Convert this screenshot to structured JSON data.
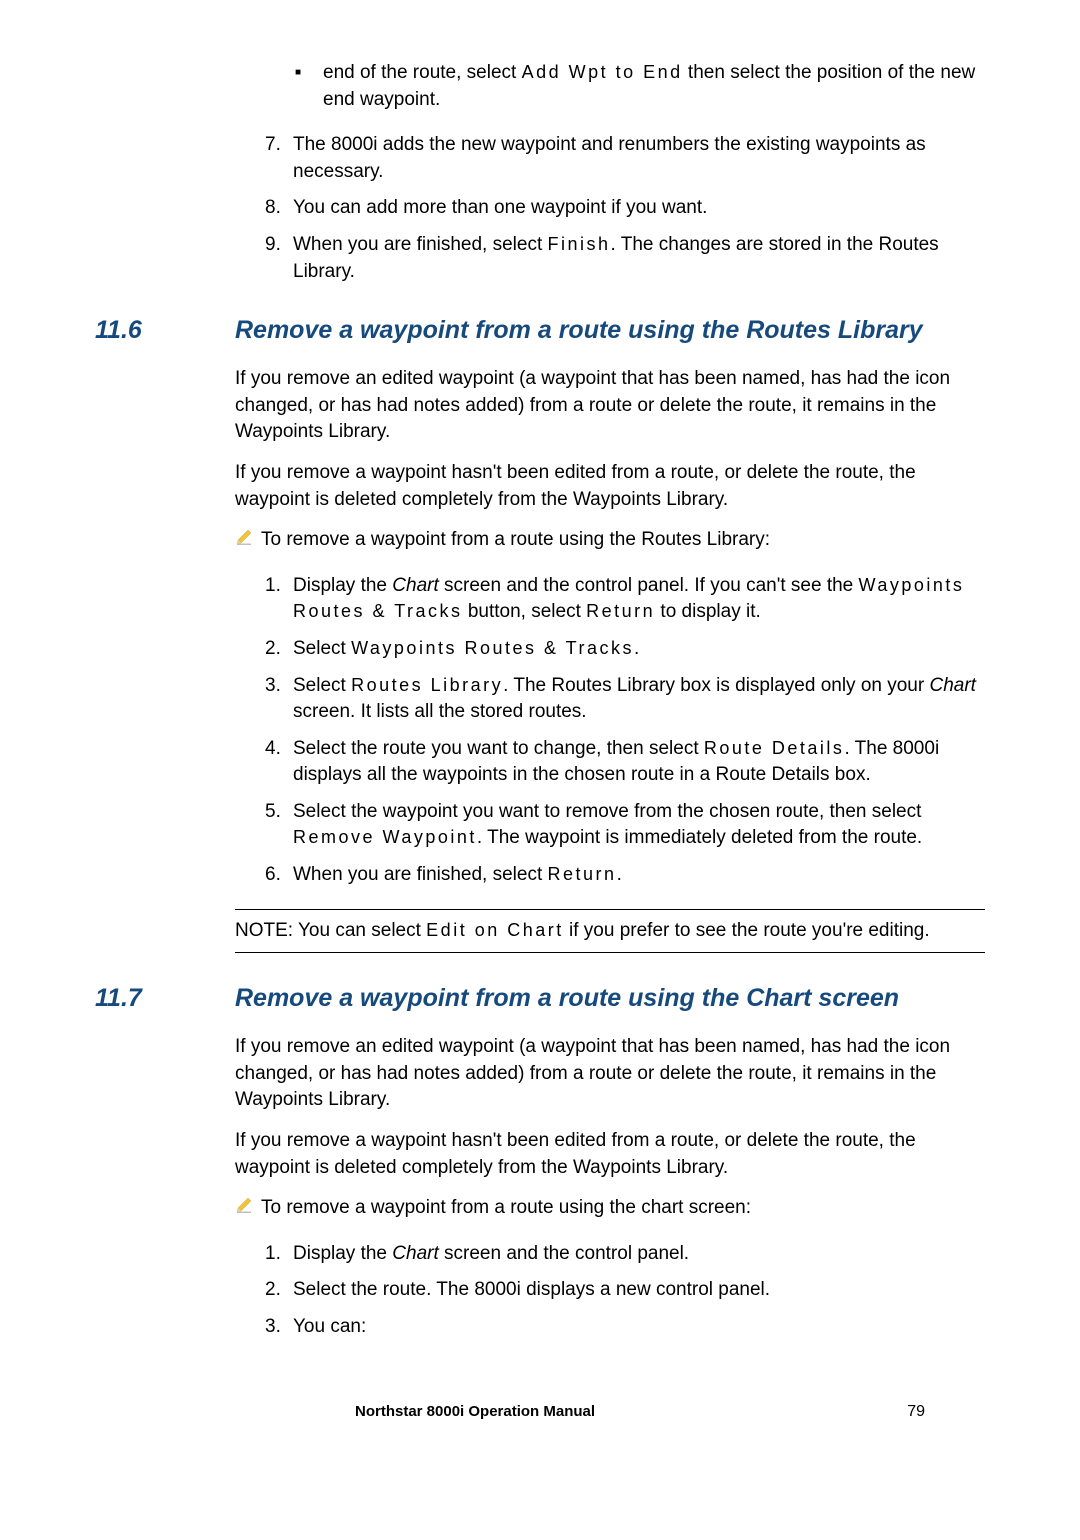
{
  "topBullet": {
    "pre": "end of the route, select ",
    "ui": "Add Wpt to End",
    "post": " then select the position of the new end waypoint."
  },
  "topList": [
    {
      "n": "7.",
      "text": "The 8000i adds the new waypoint and renumbers the existing waypoints as necessary."
    },
    {
      "n": "8.",
      "text": "You can add more than one waypoint if you want."
    },
    {
      "n": "9.",
      "pre": "When you are finished, select ",
      "ui": "Finish",
      "post": ". The changes are  stored in the Routes Library."
    }
  ],
  "sec116": {
    "num": "11.6",
    "title": "Remove a waypoint from a route using the Routes Library",
    "p1": "If you remove an edited waypoint (a waypoint that has been named, has had the icon changed, or has had notes added) from a route or delete the route, it remains in the Waypoints Library.",
    "p2": "If you remove a waypoint hasn't been edited from a route, or delete the route, the waypoint is deleted completely from the Waypoints Library.",
    "pencil": "To remove a waypoint from a route using the Routes Library:",
    "steps": [
      {
        "n": "1.",
        "parts": [
          "Display the ",
          {
            "i": "Chart"
          },
          " screen and the control panel. If you can't see the ",
          {
            "ui": "Waypoints Routes & Tracks"
          },
          " button, select ",
          {
            "ui": "Return"
          },
          " to display it."
        ]
      },
      {
        "n": "2.",
        "parts": [
          "Select ",
          {
            "ui": "Waypoints Routes & Tracks"
          },
          "."
        ]
      },
      {
        "n": "3.",
        "parts": [
          "Select ",
          {
            "ui": "Routes Library"
          },
          ". The Routes Library box is displayed only on your ",
          {
            "i": "Chart"
          },
          " screen. It lists all the stored routes."
        ]
      },
      {
        "n": "4.",
        "parts": [
          "Select the route you want to change, then select ",
          {
            "ui": "Route Details"
          },
          ". The 8000i displays all the waypoints in the chosen route in a Route Details box."
        ]
      },
      {
        "n": "5.",
        "parts": [
          "Select the waypoint you want to remove from the chosen route, then select ",
          {
            "ui": "Remove Waypoint"
          },
          ". The waypoint is immediately deleted from the route."
        ]
      },
      {
        "n": "6.",
        "parts": [
          "When you are finished, select ",
          {
            "ui": "Return"
          },
          "."
        ]
      }
    ],
    "note": {
      "pre": "NOTE: You can select ",
      "ui": "Edit on Chart",
      "post": " if you prefer to see the route you're editing."
    }
  },
  "sec117": {
    "num": "11.7",
    "title": "Remove a waypoint from a route using the Chart screen",
    "p1": "If you remove an edited waypoint (a waypoint that has been named, has had the icon changed, or has had notes added) from a route or delete the route, it remains in the Waypoints Library.",
    "p2": "If you remove a waypoint hasn't been edited from a route, or delete the route, the waypoint is deleted completely from the Waypoints Library.",
    "pencil": "To remove a waypoint from a route using the chart screen:",
    "steps": [
      {
        "n": "1.",
        "parts": [
          "Display the ",
          {
            "i": "Chart"
          },
          " screen and the control panel."
        ]
      },
      {
        "n": "2.",
        "parts": [
          "Select the route. The 8000i displays a new control panel."
        ]
      },
      {
        "n": "3.",
        "parts": [
          "You can:"
        ]
      }
    ]
  },
  "footer": {
    "title": "Northstar 8000i Operation Manual",
    "page": "79"
  },
  "colors": {
    "heading": "#174a7c",
    "pencil_fill": "#f4c430",
    "pencil_shadow": "#c0c0c0"
  }
}
